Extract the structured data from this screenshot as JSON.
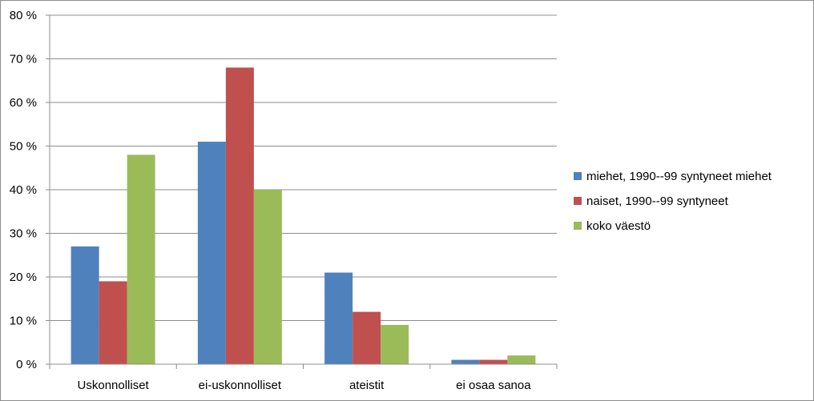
{
  "chart_data": {
    "type": "bar",
    "categories": [
      "Uskonnolliset",
      "ei-uskonnolliset",
      "ateistit",
      "ei osaa sanoa"
    ],
    "series": [
      {
        "name": "miehet, 1990--99 syntyneet miehet",
        "color": "#4f81bd",
        "values": [
          27,
          51,
          21,
          1
        ]
      },
      {
        "name": "naiset, 1990--99 syntyneet",
        "color": "#c0504d",
        "values": [
          19,
          68,
          12,
          1
        ]
      },
      {
        "name": "koko väestö",
        "color": "#9bbb59",
        "values": [
          48,
          40,
          9,
          2
        ]
      }
    ],
    "yticks": [
      "0 %",
      "10 %",
      "20 %",
      "30 %",
      "40 %",
      "50 %",
      "60 %",
      "70 %",
      "80 %"
    ],
    "ylim": [
      0,
      80
    ],
    "grid": true,
    "legend": "right"
  }
}
